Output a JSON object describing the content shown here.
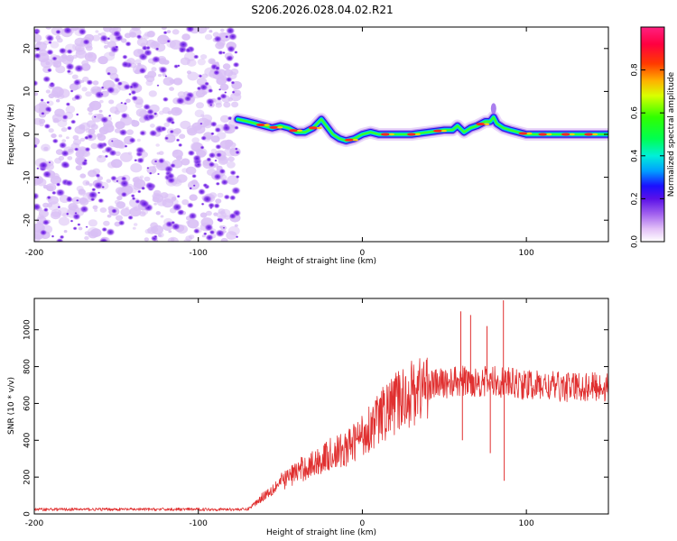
{
  "chart_data": [
    {
      "type": "heatmap",
      "title": "S206.2026.028.04.02.R21",
      "xlabel": "Height of straight line (km)",
      "ylabel": "Frequency (Hz)",
      "xlim": [
        -200,
        150
      ],
      "ylim": [
        -25,
        25
      ],
      "x_ticks": [
        -200,
        -100,
        0,
        100
      ],
      "y_ticks": [
        -20,
        -10,
        0,
        10,
        20
      ],
      "colorbar_label": "Normalized spectral amplitude",
      "colorbar_range": [
        0,
        1
      ],
      "colorbar_ticks": [
        0.0,
        0.2,
        0.4,
        0.6,
        0.8
      ],
      "colorbar_tick_labels": [
        "0.0",
        "0.2",
        "0.4",
        "0.6",
        "0.8"
      ],
      "noise_region_xlim": [
        -200,
        -76
      ],
      "ridge": {
        "x": [
          -76,
          -70,
          -65,
          -60,
          -55,
          -50,
          -45,
          -40,
          -35,
          -30,
          -25,
          -22,
          -18,
          -14,
          -10,
          -5,
          0,
          5,
          10,
          20,
          30,
          40,
          50,
          55,
          58,
          62,
          66,
          70,
          75,
          78,
          80,
          82,
          86,
          90,
          95,
          100,
          110,
          120,
          130,
          140,
          150
        ],
        "freq": [
          3.5,
          3,
          2.5,
          2,
          1.5,
          2,
          1.5,
          0.5,
          0.5,
          1.5,
          3.5,
          2,
          0,
          -1,
          -1.5,
          -1,
          0,
          0.5,
          0,
          0,
          0,
          0.5,
          1,
          1,
          2,
          0.5,
          1.5,
          2,
          3,
          3,
          4,
          2.5,
          1.5,
          1,
          0.5,
          0,
          0,
          0,
          0,
          0,
          0
        ]
      }
    },
    {
      "type": "line",
      "xlabel": "Height of straight line (km)",
      "ylabel": "SNR (10 * v/v)",
      "xlim": [
        -200,
        150
      ],
      "ylim": [
        0,
        1170
      ],
      "x_ticks": [
        -200,
        -100,
        0,
        100
      ],
      "y_ticks": [
        0,
        200,
        400,
        600,
        800,
        1000
      ],
      "line_color": "#e03030",
      "trend": {
        "x": [
          -200,
          -70,
          -65,
          -60,
          -50,
          -40,
          -30,
          -20,
          -10,
          0,
          10,
          20,
          30,
          40,
          50,
          60,
          80,
          100,
          120,
          150
        ],
        "y": [
          25,
          25,
          60,
          100,
          170,
          230,
          270,
          320,
          350,
          430,
          520,
          600,
          660,
          700,
          710,
          720,
          720,
          700,
          690,
          690
        ]
      },
      "spikes": [
        {
          "x": 60,
          "y": 1100
        },
        {
          "x": 61,
          "y": 400
        },
        {
          "x": 66,
          "y": 1080
        },
        {
          "x": 76,
          "y": 1020
        },
        {
          "x": 78,
          "y": 330
        },
        {
          "x": 86,
          "y": 1160
        },
        {
          "x": 86.5,
          "y": 180
        },
        {
          "x": 87,
          "y": 780
        }
      ]
    }
  ]
}
